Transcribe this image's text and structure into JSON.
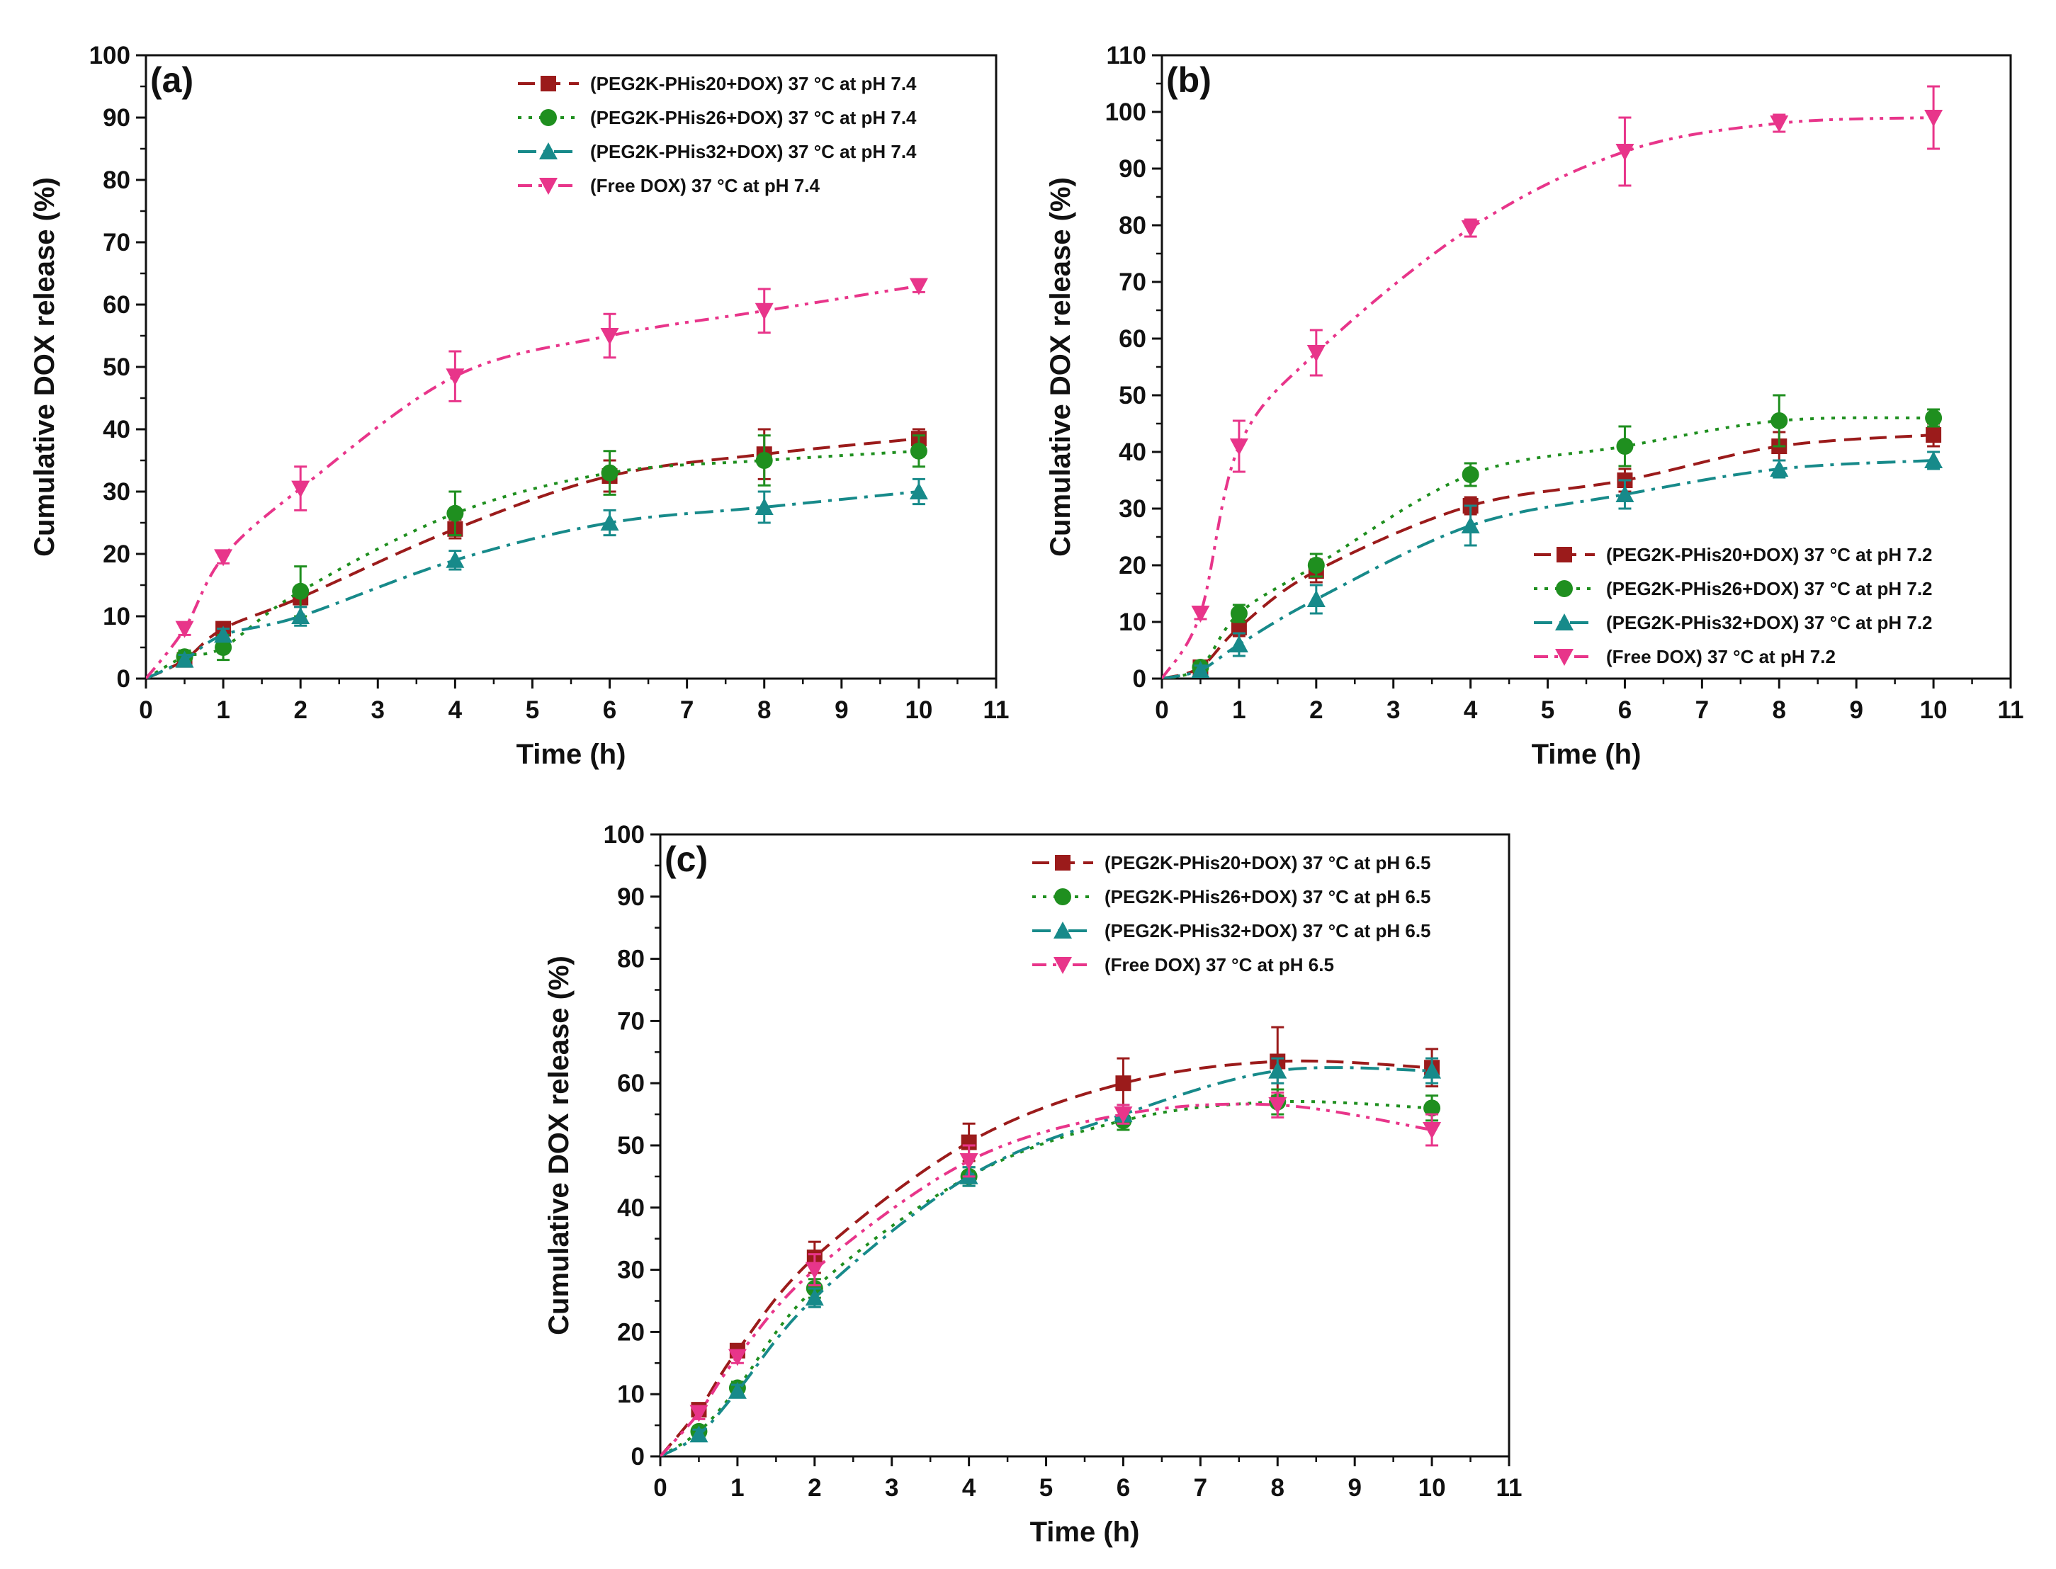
{
  "chart_data": [
    {
      "type": "line",
      "panel_label": "(a)",
      "xlabel": "Time (h)",
      "ylabel": "Cumulative DOX release (%)",
      "xlim": [
        0,
        11
      ],
      "ylim": [
        0,
        100
      ],
      "x_ticks": [
        "0",
        "1",
        "2",
        "3",
        "4",
        "5",
        "6",
        "7",
        "8",
        "9",
        "10",
        "11"
      ],
      "y_ticks": [
        "0",
        "10",
        "20",
        "30",
        "40",
        "50",
        "60",
        "70",
        "80",
        "90",
        "100"
      ],
      "legend_position": "top-right",
      "grid": false,
      "series": [
        {
          "name": "(PEG2K-PHis20+DOX) 37 °C at pH 7.4",
          "color": "#9b1b1b",
          "marker": "square",
          "dash": "dash",
          "x": [
            0.5,
            1,
            2,
            4,
            6,
            8,
            10
          ],
          "y": [
            3,
            8,
            13,
            24,
            32.5,
            36,
            38.5
          ],
          "err": [
            0.8,
            1.0,
            1.5,
            1.5,
            2.5,
            4,
            1.5
          ]
        },
        {
          "name": "(PEG2K-PHis26+DOX) 37 °C at pH 7.4",
          "color": "#1f8f1f",
          "marker": "circle",
          "dash": "dot",
          "x": [
            0.5,
            1,
            2,
            4,
            6,
            8,
            10
          ],
          "y": [
            3.5,
            5,
            14,
            26.5,
            33,
            35,
            36.5
          ],
          "err": [
            1.0,
            2,
            4,
            3.5,
            3.5,
            4,
            2.5
          ]
        },
        {
          "name": "(PEG2K-PHis32+DOX) 37 °C at pH 7.4",
          "color": "#178a8a",
          "marker": "triangle-up",
          "dash": "dashdot",
          "x": [
            0.5,
            1,
            2,
            4,
            6,
            8,
            10
          ],
          "y": [
            3,
            7,
            10,
            19,
            25,
            27.5,
            30
          ],
          "err": [
            0.8,
            1.0,
            1.5,
            1.5,
            2,
            2.5,
            2
          ]
        },
        {
          "name": "(Free DOX) 37 °C at pH 7.4",
          "color": "#e8358a",
          "marker": "triangle-down",
          "dash": "dashdotdot",
          "x": [
            0.5,
            1,
            2,
            4,
            6,
            8,
            10
          ],
          "y": [
            8,
            19.5,
            30.5,
            48.5,
            55,
            59,
            63
          ],
          "err": [
            1,
            1,
            3.5,
            4,
            3.5,
            3.5,
            1
          ]
        }
      ]
    },
    {
      "type": "line",
      "panel_label": "(b)",
      "xlabel": "Time (h)",
      "ylabel": "Cumulative DOX release (%)",
      "xlim": [
        0,
        11
      ],
      "ylim": [
        0,
        110
      ],
      "x_ticks": [
        "0",
        "1",
        "2",
        "3",
        "4",
        "5",
        "6",
        "7",
        "8",
        "9",
        "10",
        "11"
      ],
      "y_ticks": [
        "0",
        "10",
        "20",
        "30",
        "40",
        "50",
        "60",
        "70",
        "80",
        "90",
        "100",
        "110"
      ],
      "legend_position": "bottom-right",
      "grid": false,
      "series": [
        {
          "name": "(PEG2K-PHis20+DOX) 37 °C at pH 7.2",
          "color": "#9b1b1b",
          "marker": "square",
          "dash": "dash",
          "x": [
            0.5,
            1,
            2,
            4,
            6,
            8,
            10
          ],
          "y": [
            2,
            9,
            19,
            30.5,
            35,
            41,
            43
          ],
          "err": [
            0.8,
            1.5,
            2,
            1.5,
            2,
            2.5,
            2
          ]
        },
        {
          "name": "(PEG2K-PHis26+DOX) 37 °C at pH 7.2",
          "color": "#1f8f1f",
          "marker": "circle",
          "dash": "dot",
          "x": [
            0.5,
            1,
            2,
            4,
            6,
            8,
            10
          ],
          "y": [
            2,
            11.5,
            20,
            36,
            41,
            45.5,
            46
          ],
          "err": [
            0.8,
            1.5,
            2,
            2,
            3.5,
            4.5,
            1.5
          ]
        },
        {
          "name": "(PEG2K-PHis32+DOX) 37 °C at pH 7.2",
          "color": "#178a8a",
          "marker": "triangle-up",
          "dash": "dashdot",
          "x": [
            0.5,
            1,
            2,
            4,
            6,
            8,
            10
          ],
          "y": [
            1.5,
            6,
            14,
            27,
            32.5,
            37,
            38.5
          ],
          "err": [
            0.8,
            2,
            2.5,
            3.5,
            2.5,
            1.5,
            1.5
          ]
        },
        {
          "name": "(Free DOX) 37 °C at pH 7.2",
          "color": "#e8358a",
          "marker": "triangle-down",
          "dash": "dashdotdot",
          "x": [
            0.5,
            1,
            2,
            4,
            6,
            8,
            10
          ],
          "y": [
            11.5,
            41,
            57.5,
            79.5,
            93,
            98,
            99
          ],
          "err": [
            1,
            4.5,
            4,
            1.5,
            6,
            1.5,
            5.5
          ]
        }
      ]
    },
    {
      "type": "line",
      "panel_label": "(c)",
      "xlabel": "Time (h)",
      "ylabel": "Cumulative DOX release (%)",
      "xlim": [
        0,
        11
      ],
      "ylim": [
        0,
        100
      ],
      "x_ticks": [
        "0",
        "1",
        "2",
        "3",
        "4",
        "5",
        "6",
        "7",
        "8",
        "9",
        "10",
        "11"
      ],
      "y_ticks": [
        "0",
        "10",
        "20",
        "30",
        "40",
        "50",
        "60",
        "70",
        "80",
        "90",
        "100"
      ],
      "legend_position": "top-right",
      "grid": false,
      "series": [
        {
          "name": "(PEG2K-PHis20+DOX) 37 °C at pH 6.5",
          "color": "#9b1b1b",
          "marker": "square",
          "dash": "dash",
          "x": [
            0.5,
            1,
            2,
            4,
            6,
            8,
            10
          ],
          "y": [
            7.5,
            17,
            32,
            50.5,
            60,
            63.5,
            62.5
          ],
          "err": [
            1,
            1,
            2.5,
            3,
            4,
            5.5,
            3
          ]
        },
        {
          "name": "(PEG2K-PHis26+DOX) 37 °C at pH 6.5",
          "color": "#1f8f1f",
          "marker": "circle",
          "dash": "dot",
          "x": [
            0.5,
            1,
            2,
            4,
            6,
            8,
            10
          ],
          "y": [
            4,
            11,
            27,
            45,
            54,
            57,
            56
          ],
          "err": [
            0.8,
            1,
            1.5,
            1.5,
            1.5,
            2,
            2
          ]
        },
        {
          "name": "(PEG2K-PHis32+DOX) 37 °C at pH 6.5",
          "color": "#178a8a",
          "marker": "triangle-up",
          "dash": "dashdot",
          "x": [
            0.5,
            1,
            2,
            4,
            6,
            8,
            10
          ],
          "y": [
            3.5,
            10.5,
            25.5,
            45,
            55,
            62,
            62
          ],
          "err": [
            0.8,
            1,
            1.5,
            1.5,
            1.5,
            2,
            2
          ]
        },
        {
          "name": "(Free DOX) 37 °C at pH 6.5",
          "color": "#e8358a",
          "marker": "triangle-down",
          "dash": "dashdotdot",
          "x": [
            0.5,
            1,
            2,
            4,
            6,
            8,
            10
          ],
          "y": [
            7,
            16,
            30,
            47.5,
            55,
            56.5,
            52.5
          ],
          "err": [
            1,
            1,
            2.5,
            2.5,
            1.5,
            2,
            2.5
          ]
        }
      ]
    }
  ]
}
